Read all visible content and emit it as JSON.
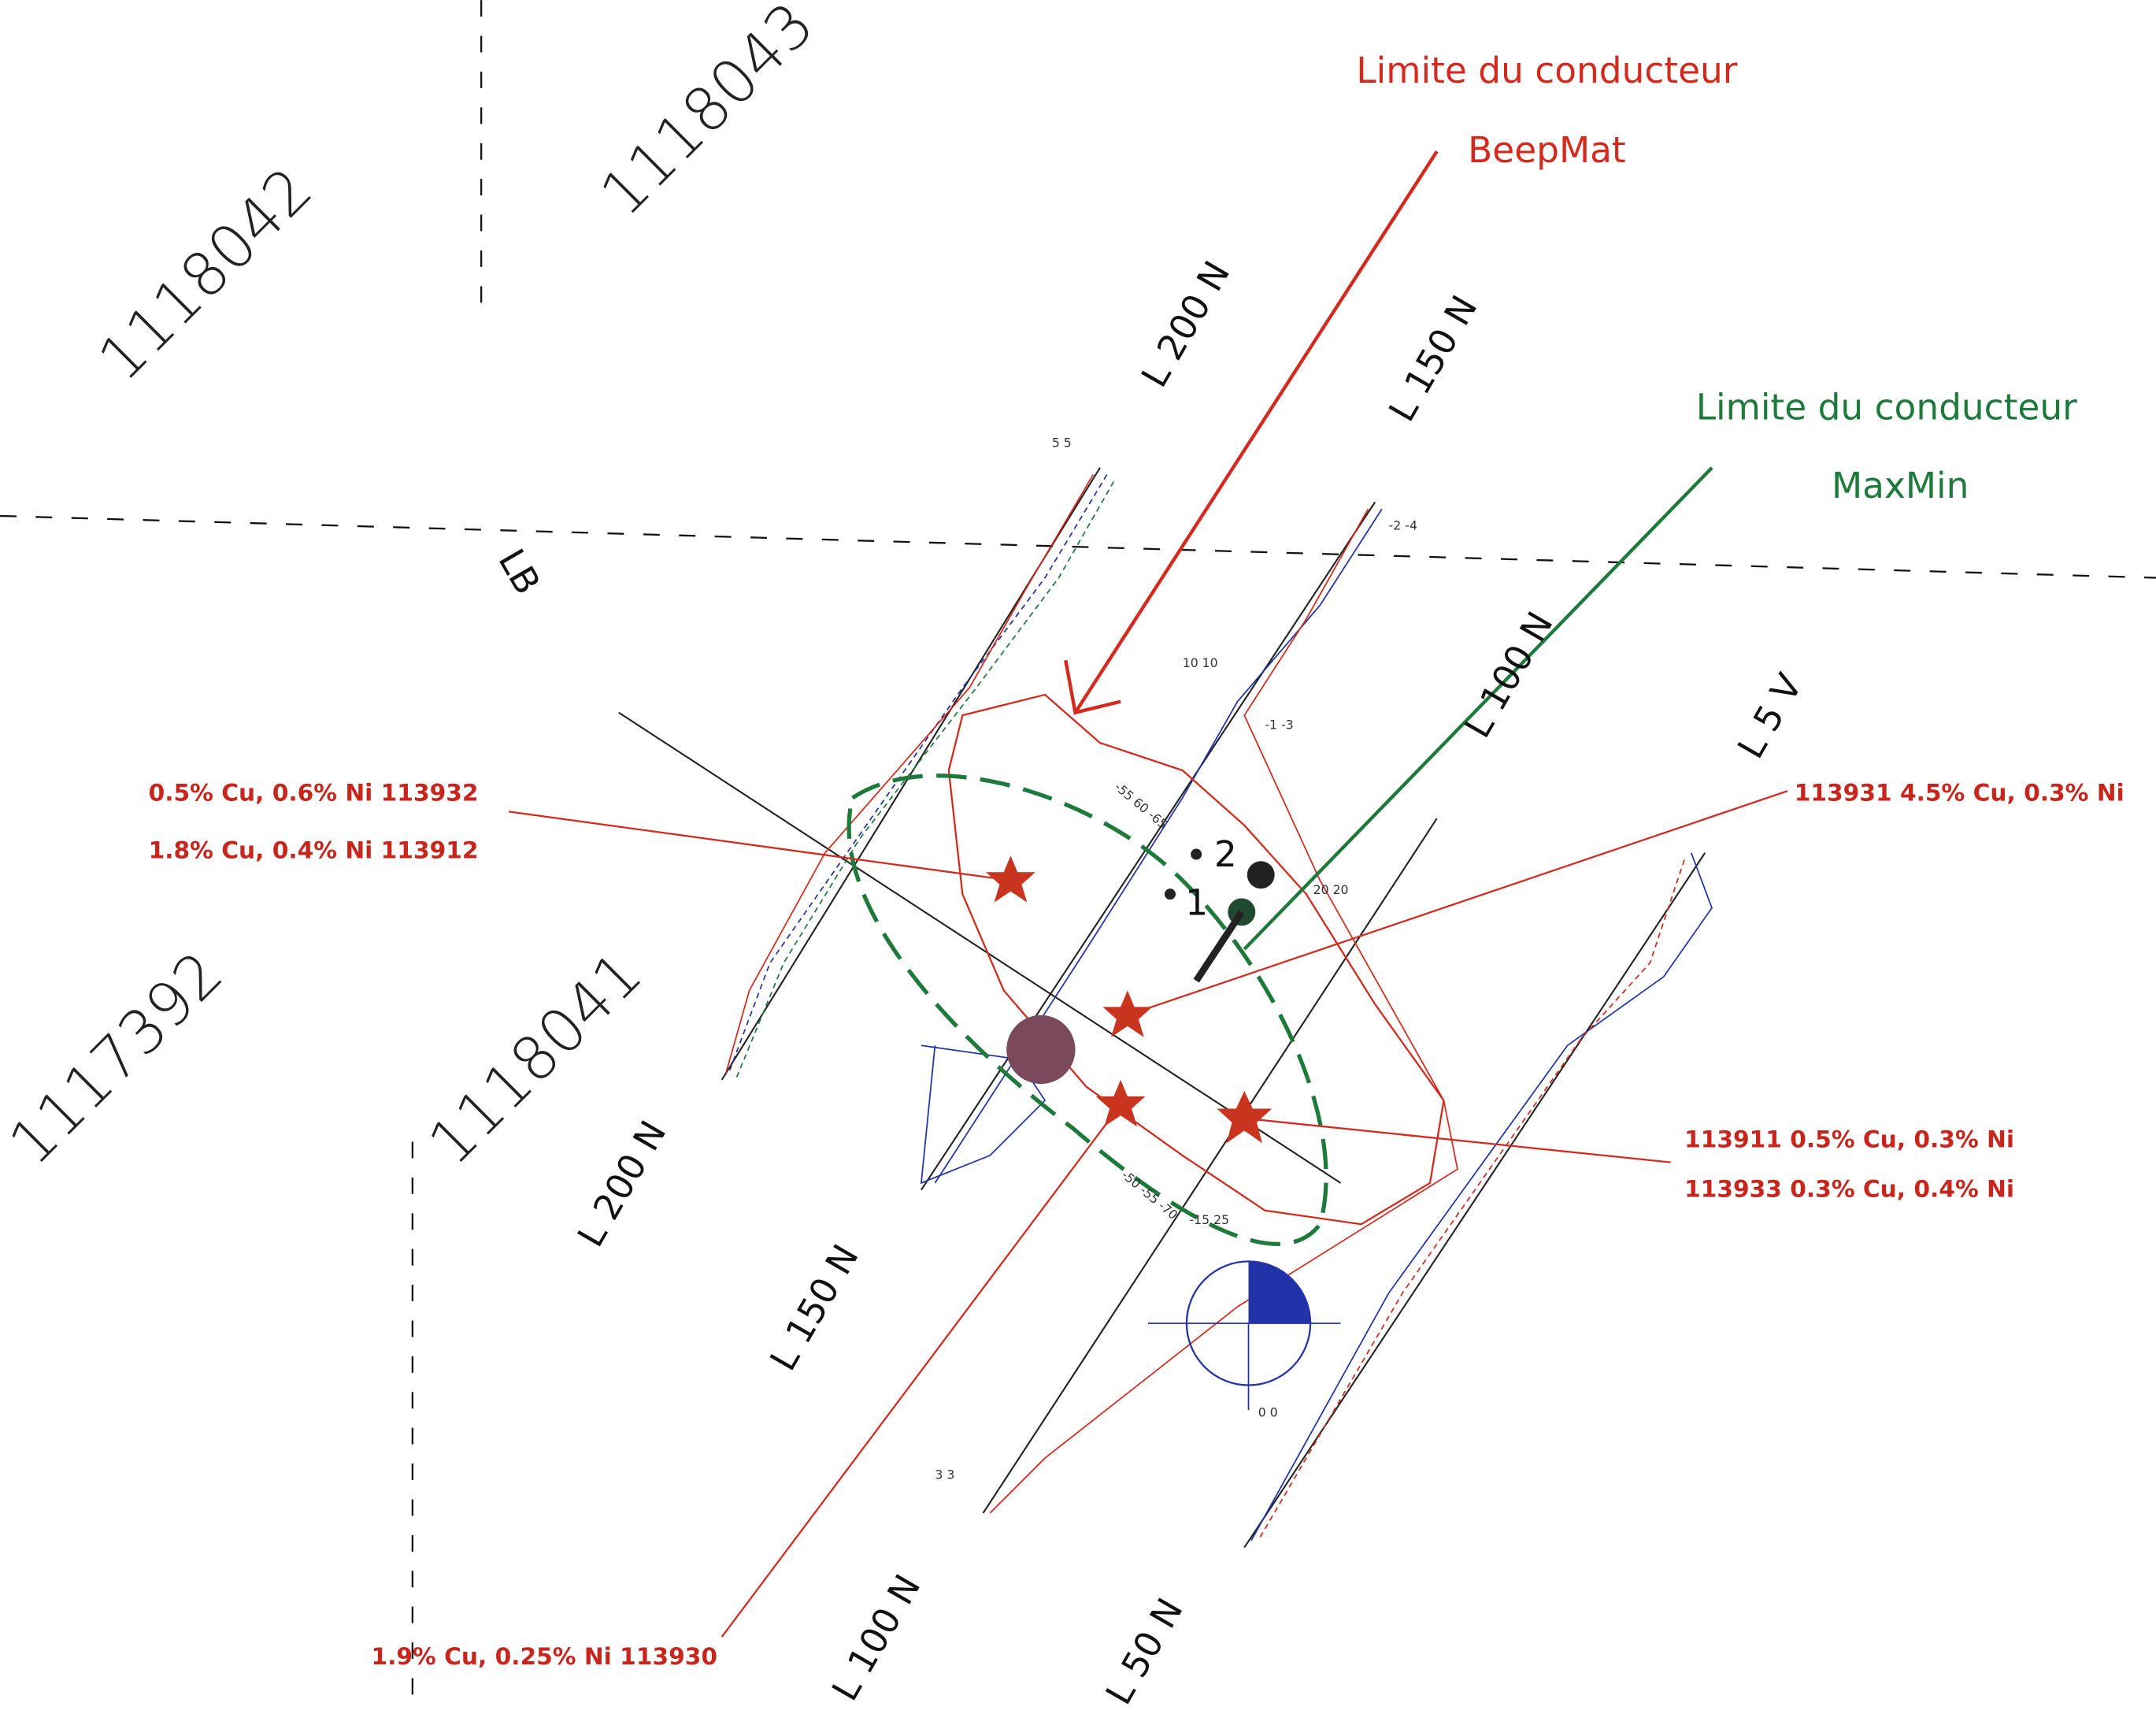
{
  "claims": [
    "1118042",
    "1118043",
    "1117392",
    "1118041"
  ],
  "line_labels": {
    "upper": [
      "L 200 N",
      "L 150 N",
      "L 100 N",
      "L 5 V"
    ],
    "lower": [
      "L 200 N",
      "L 150 N",
      "L 100 N",
      "L 50 N"
    ],
    "baseline": "LB"
  },
  "legend": {
    "beepmat": {
      "title": "Limite du conducteur",
      "name": "BeepMat"
    },
    "maxmin": {
      "title": "Limite du conducteur",
      "name": "MaxMin"
    }
  },
  "samples": [
    "0.5% Cu, 0.6% Ni 113932",
    "1.8% Cu, 0.4% Ni  113912",
    "113931 4.5% Cu, 0.3% Ni",
    "113911 0.5% Cu, 0.3% Ni",
    "113933 0.3% Cu, 0.4% Ni",
    "1.9% Cu, 0.25% Ni 113930"
  ],
  "drill_holes": [
    "2",
    "1"
  ],
  "profile_labels": [
    "5 5",
    "-2 -4",
    "0 0",
    "10 10",
    "3 3",
    "20 20",
    "-55 60 -65",
    "-50 -55 -70",
    "-15 25",
    "-1 -3"
  ]
}
